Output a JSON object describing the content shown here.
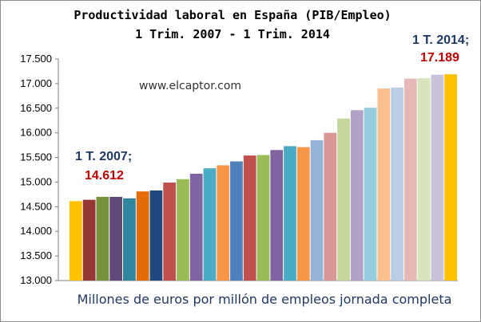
{
  "chart_data": {
    "type": "bar",
    "title": "Productividad laboral en España (PIB/Empleo)",
    "subtitle": "1 Trim. 2007 - 1 Trim. 2014",
    "xlabel": "Millones de euros por millón de empleos jornada completa",
    "ylabel": "",
    "watermark": "www.elcaptor.com",
    "ylim": [
      13000,
      17500
    ],
    "yticks": [
      "13.000",
      "13.500",
      "14.000",
      "14.500",
      "15.000",
      "15.500",
      "16.000",
      "16.500",
      "17.000",
      "17.500"
    ],
    "ytick_values": [
      13000,
      13500,
      14000,
      14500,
      15000,
      15500,
      16000,
      16500,
      17000,
      17500
    ],
    "grid": false,
    "values": [
      14612,
      14640,
      14700,
      14700,
      14670,
      14810,
      14830,
      14990,
      15060,
      15170,
      15280,
      15340,
      15420,
      15540,
      15550,
      15650,
      15730,
      15710,
      15850,
      16000,
      16290,
      16460,
      16510,
      16900,
      16920,
      17100,
      17110,
      17180,
      17189
    ],
    "colors": [
      "#ffc000",
      "#953735",
      "#77933c",
      "#604a7b",
      "#31859c",
      "#e46c0a",
      "#1f497d",
      "#c0504d",
      "#9bbb59",
      "#8064a2",
      "#4bacc6",
      "#f79646",
      "#4f81bd",
      "#c0504d",
      "#9bbb59",
      "#8064a2",
      "#4bacc6",
      "#f79646",
      "#95b3d7",
      "#d99694",
      "#c3d69b",
      "#b3a2c7",
      "#93cddd",
      "#fac090",
      "#b9cde5",
      "#e6b9b8",
      "#d7e4bd",
      "#ccc1da",
      "#ffc000"
    ],
    "annotations": {
      "start_label": "1 T. 2007;",
      "start_value": "14.612",
      "end_label": "1 T. 2014;",
      "end_value": "17.189"
    }
  }
}
